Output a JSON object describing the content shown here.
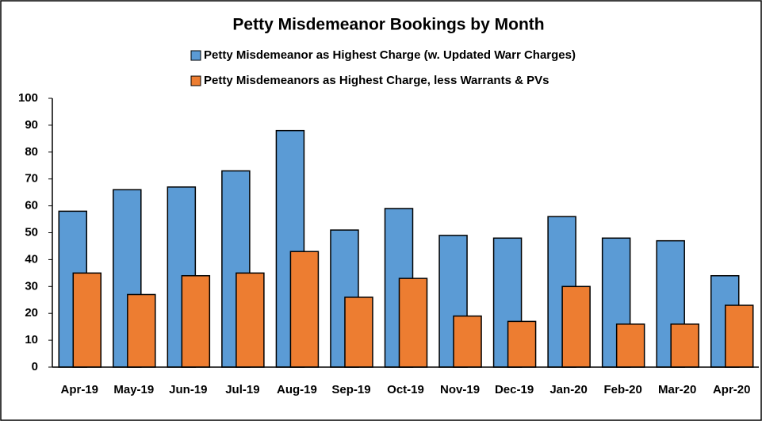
{
  "chart_data": {
    "type": "bar",
    "title": "Petty Misdemeanor Bookings by Month",
    "categories": [
      "Apr-19",
      "May-19",
      "Jun-19",
      "Jul-19",
      "Aug-19",
      "Sep-19",
      "Oct-19",
      "Nov-19",
      "Dec-19",
      "Jan-20",
      "Feb-20",
      "Mar-20",
      "Apr-20"
    ],
    "series": [
      {
        "name": "Petty Misdemeanor as Highest Charge (w. Updated Warr Charges)",
        "color": "#5b9bd5",
        "values": [
          58,
          66,
          67,
          73,
          88,
          51,
          59,
          49,
          48,
          56,
          48,
          47,
          34
        ]
      },
      {
        "name": "Petty Misdemeanors as Highest Charge, less Warrants & PVs",
        "color": "#ed7d31",
        "values": [
          35,
          27,
          34,
          35,
          43,
          26,
          33,
          19,
          17,
          30,
          16,
          16,
          23
        ]
      }
    ],
    "ylim": [
      0,
      100
    ],
    "yticks": [
      0,
      10,
      20,
      30,
      40,
      50,
      60,
      70,
      80,
      90,
      100
    ],
    "grid": false,
    "legend": "top"
  }
}
